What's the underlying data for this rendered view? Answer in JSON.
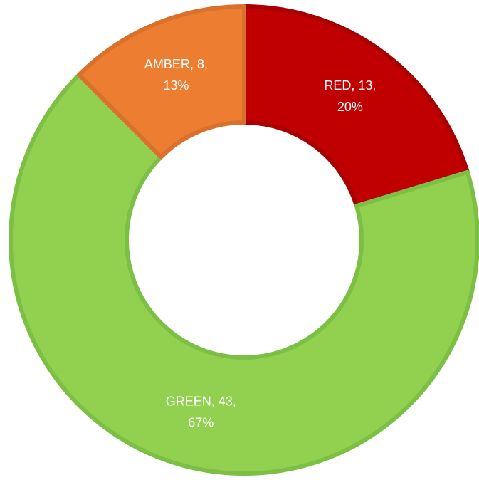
{
  "chart_data": {
    "type": "donut",
    "values": [
      13,
      43,
      8
    ],
    "value_labels": [
      [
        "RED, 13,",
        "20%"
      ],
      [
        "GREEN, 43,",
        "67%"
      ],
      [
        "AMBER, 8,",
        "13%"
      ]
    ],
    "colors": [
      "#c00000",
      "#92d050",
      "#ed7d31"
    ],
    "edge_colors": [
      "#a80000",
      "#7cbf45",
      "#d9702b"
    ]
  }
}
